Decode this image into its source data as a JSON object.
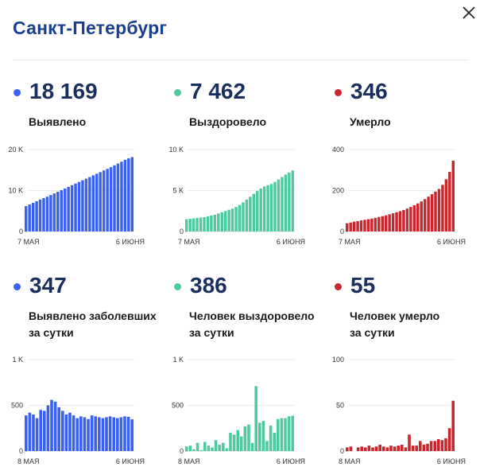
{
  "header": {
    "title": "Санкт-Петербург"
  },
  "colors": {
    "blue": "#3a62ee",
    "green": "#4fcaa0",
    "red": "#c6282d",
    "title": "#1b3f8f"
  },
  "cards": [
    {
      "value": "18 169",
      "label_line1": "Выявлено",
      "label_line2": "",
      "color": "#3a62ee",
      "chart_data": {
        "type": "bar",
        "series_name": "Выявлено",
        "x_start_label": "7 МАЯ",
        "x_end_label": "6 ИЮНЯ",
        "ylim": [
          0,
          20000
        ],
        "yticks": [
          0,
          10000,
          20000
        ],
        "ytick_labels": [
          "0",
          "10 K",
          "20 K"
        ],
        "values": [
          6200,
          6600,
          7000,
          7400,
          7800,
          8150,
          8500,
          8900,
          9300,
          9700,
          10100,
          10500,
          10900,
          11300,
          11700,
          12100,
          12500,
          12900,
          13300,
          13700,
          14100,
          14500,
          14900,
          15300,
          15700,
          16150,
          16600,
          17050,
          17500,
          17850,
          18169
        ]
      }
    },
    {
      "value": "7 462",
      "label_line1": "Выздоровело",
      "label_line2": "",
      "color": "#4fcaa0",
      "chart_data": {
        "type": "bar",
        "series_name": "Выздоровело",
        "x_start_label": "7 МАЯ",
        "x_end_label": "6 ИЮНЯ",
        "ylim": [
          0,
          10000
        ],
        "yticks": [
          0,
          5000,
          10000
        ],
        "ytick_labels": [
          "0",
          "5 K",
          "10 K"
        ],
        "values": [
          1500,
          1550,
          1600,
          1650,
          1700,
          1750,
          1850,
          1950,
          2050,
          2200,
          2350,
          2500,
          2650,
          2800,
          3000,
          3250,
          3550,
          3900,
          4250,
          4600,
          4950,
          5250,
          5500,
          5650,
          5800,
          6050,
          6350,
          6650,
          6950,
          7200,
          7462
        ]
      }
    },
    {
      "value": "346",
      "label_line1": "Умерло",
      "label_line2": "",
      "color": "#c6282d",
      "chart_data": {
        "type": "bar",
        "series_name": "Умерло",
        "x_start_label": "7 МАЯ",
        "x_end_label": "6 ИЮНЯ",
        "ylim": [
          0,
          400
        ],
        "yticks": [
          0,
          200,
          400
        ],
        "ytick_labels": [
          "0",
          "200",
          "400"
        ],
        "values": [
          40,
          44,
          48,
          51,
          54,
          57,
          60,
          63,
          67,
          71,
          75,
          79,
          84,
          89,
          94,
          99,
          105,
          112,
          120,
          128,
          137,
          147,
          158,
          170,
          182,
          195,
          208,
          228,
          255,
          291,
          346
        ]
      }
    },
    {
      "value": "347",
      "label_line1": "Выявлено заболевших",
      "label_line2": "за сутки",
      "color": "#3a62ee",
      "chart_data": {
        "type": "bar",
        "series_name": "Выявлено заболевших за сутки",
        "x_start_label": "8 МАЯ",
        "x_end_label": "6 ИЮНЯ",
        "ylim": [
          0,
          1000
        ],
        "yticks": [
          0,
          500,
          1000
        ],
        "ytick_labels": [
          "0",
          "500",
          "1 K"
        ],
        "values": [
          390,
          420,
          400,
          360,
          450,
          440,
          500,
          560,
          540,
          480,
          440,
          400,
          420,
          390,
          360,
          380,
          370,
          350,
          390,
          380,
          370,
          360,
          370,
          380,
          370,
          360,
          370,
          380,
          375,
          347
        ]
      }
    },
    {
      "value": "386",
      "label_line1": "Человек выздоровело",
      "label_line2": "за сутки",
      "color": "#4fcaa0",
      "chart_data": {
        "type": "bar",
        "series_name": "Человек выздоровело за сутки",
        "x_start_label": "8 МАЯ",
        "x_end_label": "6 ИЮНЯ",
        "ylim": [
          0,
          1000
        ],
        "yticks": [
          0,
          500,
          1000
        ],
        "ytick_labels": [
          "0",
          "500",
          "1 K"
        ],
        "values": [
          50,
          60,
          20,
          90,
          10,
          100,
          60,
          40,
          120,
          70,
          90,
          30,
          200,
          180,
          230,
          160,
          270,
          290,
          90,
          710,
          310,
          330,
          110,
          280,
          200,
          350,
          360,
          360,
          380,
          386
        ]
      }
    },
    {
      "value": "55",
      "label_line1": "Человек умерло",
      "label_line2": "за сутки",
      "color": "#c6282d",
      "chart_data": {
        "type": "bar",
        "series_name": "Человек умерло за сутки",
        "x_start_label": "8 МАЯ",
        "x_end_label": "6 ИЮНЯ",
        "ylim": [
          0,
          100
        ],
        "yticks": [
          0,
          50,
          100
        ],
        "ytick_labels": [
          "0",
          "50",
          "100"
        ],
        "values": [
          4,
          5,
          0,
          4,
          5,
          4,
          6,
          4,
          5,
          7,
          5,
          4,
          6,
          5,
          6,
          7,
          4,
          18,
          6,
          6,
          11,
          7,
          8,
          11,
          11,
          13,
          12,
          14,
          25,
          55
        ]
      }
    }
  ]
}
